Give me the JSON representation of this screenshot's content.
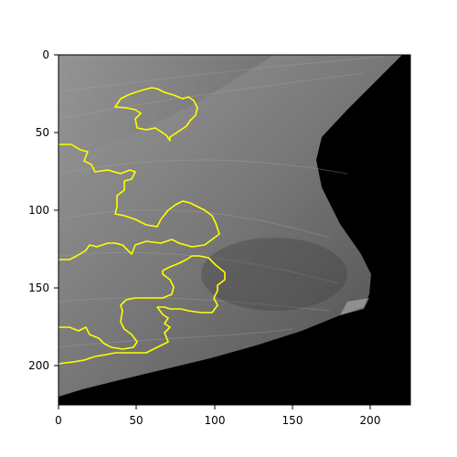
{
  "figure": {
    "image_description_colors": {
      "background": "#ffffff",
      "tissue_light": "#8a8a8a",
      "tissue_dark": "#4a4a4a",
      "outside_breast": "#000000",
      "contour": "#ffff00"
    },
    "x_ticks": [
      "0",
      "50",
      "100",
      "150",
      "200"
    ],
    "y_ticks": [
      "0",
      "50",
      "100",
      "150",
      "200"
    ],
    "x_tick_values": [
      0,
      50,
      100,
      150,
      200
    ],
    "y_tick_values": [
      0,
      50,
      100,
      150,
      200
    ],
    "image_extent": {
      "x": [
        0,
        226
      ],
      "y": [
        0,
        226
      ]
    }
  }
}
